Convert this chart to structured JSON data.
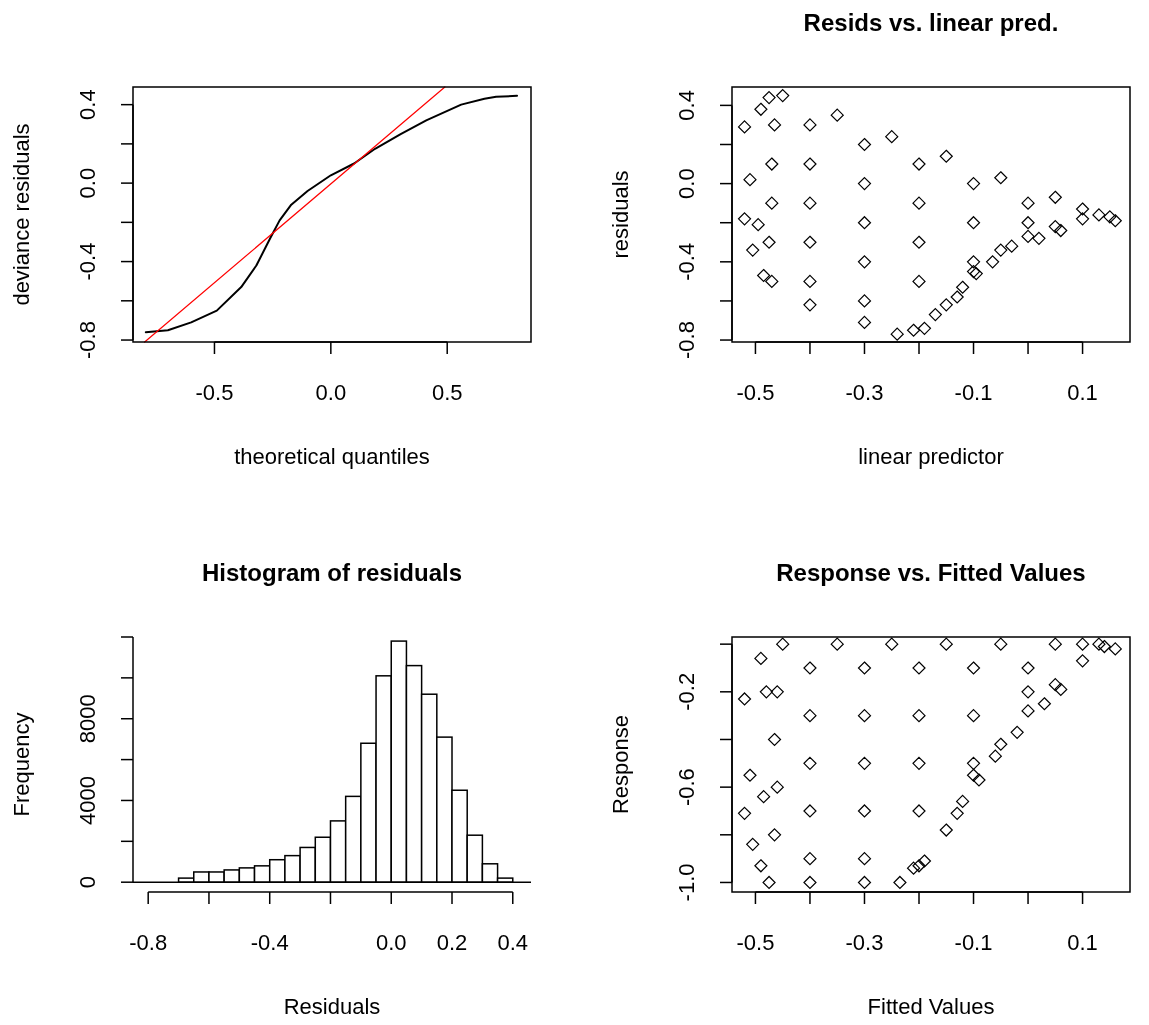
{
  "chart_data": [
    {
      "type": "line",
      "xlabel": "theoretical quantiles",
      "ylabel": "deviance residuals",
      "xlim": [
        -0.85,
        0.86
      ],
      "ylim": [
        -0.81,
        0.49
      ],
      "xticks": [
        -0.5,
        {
          "value": 0,
          "label": "0.0"
        },
        0.5
      ],
      "yticks": [
        -0.8,
        {
          "value": -0.6,
          "label": null
        },
        -0.4,
        {
          "value": -0.2,
          "label": null
        },
        {
          "value": 0,
          "label": "0.0"
        },
        {
          "value": 0.2,
          "label": null
        },
        0.4
      ],
      "series": [
        {
          "color": "#000000",
          "x": [
            -0.795,
            -0.7,
            -0.6,
            -0.49,
            -0.385,
            -0.32,
            -0.26,
            -0.22,
            -0.17,
            -0.1,
            0,
            0.1,
            0.19,
            0.3,
            0.41,
            0.56,
            0.66,
            0.71,
            0.8
          ],
          "values": [
            -0.76,
            -0.75,
            -0.71,
            -0.65,
            -0.53,
            -0.42,
            -0.28,
            -0.19,
            -0.11,
            -0.04,
            0.04,
            0.1,
            0.175,
            0.25,
            0.32,
            0.4,
            0.43,
            0.44,
            0.445
          ]
        },
        {
          "color": "#ff0000",
          "x": [
            -0.8,
            0.49
          ],
          "values": [
            -0.81,
            0.49
          ]
        }
      ]
    },
    {
      "type": "scatter",
      "title": "Resids vs. linear pred.",
      "xlabel": "linear predictor",
      "ylabel": "residuals",
      "xlim": [
        -0.543,
        0.187
      ],
      "ylim": [
        -0.81,
        0.494
      ],
      "marker": "diamond",
      "xticks": [
        -0.5,
        {
          "value": -0.4,
          "label": null
        },
        -0.3,
        {
          "value": -0.2,
          "label": null
        },
        -0.1,
        {
          "value": 0,
          "label": null
        },
        0.1
      ],
      "yticks": [
        -0.8,
        {
          "value": -0.6,
          "label": null
        },
        -0.4,
        {
          "value": -0.2,
          "label": null
        },
        {
          "value": 0,
          "label": "0.0"
        },
        {
          "value": 0.2,
          "label": null
        },
        0.4
      ],
      "series": [
        {
          "color": "#000000",
          "x": [
            -0.45,
            -0.35,
            -0.25,
            -0.15,
            -0.05,
            0.05,
            0.1,
            0.13,
            -0.465,
            -0.47,
            -0.47,
            -0.475,
            -0.47,
            -0.4,
            -0.3,
            -0.24,
            -0.17,
            -0.15,
            -0.12,
            -0.1,
            -0.05,
            0,
            0.05,
            0.1,
            -0.4,
            -0.4,
            -0.4,
            -0.4,
            -0.4,
            -0.3,
            -0.3,
            -0.3,
            -0.3,
            -0.3,
            -0.2,
            -0.2,
            -0.2,
            -0.2,
            -0.1,
            -0.1,
            -0.1,
            0,
            0,
            -0.52,
            -0.51,
            -0.52,
            -0.505,
            -0.49,
            -0.475,
            -0.495,
            -0.485,
            -0.21,
            -0.19,
            -0.13,
            -0.095,
            -0.065,
            -0.03,
            0.02,
            0.06,
            0.16,
            0.15
          ],
          "values": [
            0.45,
            0.35,
            0.24,
            0.14,
            0.03,
            -0.07,
            -0.13,
            -0.16,
            0.3,
            0.1,
            -0.1,
            -0.3,
            -0.5,
            -0.62,
            -0.71,
            -0.77,
            -0.67,
            -0.62,
            -0.53,
            -0.45,
            -0.34,
            -0.27,
            -0.22,
            -0.18,
            0.3,
            0.1,
            -0.1,
            -0.3,
            -0.5,
            0.2,
            0,
            -0.2,
            -0.4,
            -0.6,
            0.1,
            -0.1,
            -0.3,
            -0.5,
            0,
            -0.2,
            -0.4,
            -0.1,
            -0.2,
            0.29,
            0.02,
            -0.18,
            -0.34,
            0.38,
            0.44,
            -0.21,
            -0.47,
            -0.75,
            -0.74,
            -0.58,
            -0.46,
            -0.4,
            -0.32,
            -0.28,
            -0.24,
            -0.19,
            -0.17
          ]
        }
      ]
    },
    {
      "type": "histogram",
      "title": "Histogram of residuals",
      "xlabel": "Residuals",
      "ylabel": "Frequency",
      "xlim": [
        -0.85,
        0.46
      ],
      "ylim": [
        -480,
        12000
      ],
      "xticks": [
        -0.8,
        {
          "value": -0.6,
          "label": null
        },
        -0.4,
        {
          "value": -0.2,
          "label": null
        },
        {
          "value": 0,
          "label": "0.0"
        },
        0.2,
        0.4
      ],
      "yticks": [
        0,
        {
          "value": 2000,
          "label": null
        },
        4000,
        {
          "value": 6000,
          "label": null
        },
        8000,
        {
          "value": 10000,
          "label": null
        },
        {
          "value": 12000,
          "label": null
        }
      ],
      "bins": [
        -0.8,
        -0.75,
        -0.7,
        -0.65,
        -0.6,
        -0.55,
        -0.5,
        -0.45,
        -0.4,
        -0.35,
        -0.3,
        -0.25,
        -0.2,
        -0.15,
        -0.1,
        -0.05,
        0,
        0.05,
        0.1,
        0.15,
        0.2,
        0.25,
        0.3,
        0.35,
        0.4
      ],
      "values": [
        0,
        0,
        200,
        500,
        500,
        600,
        700,
        800,
        1100,
        1300,
        1700,
        2200,
        3000,
        4200,
        6800,
        10100,
        11800,
        10600,
        9200,
        7100,
        4500,
        2300,
        900,
        200
      ],
      "color": "#ffffff",
      "ref_lines": [
        {
          "axis": "y",
          "value": 0
        }
      ]
    },
    {
      "type": "scatter",
      "title": "Response vs. Fitted Values",
      "xlabel": "Fitted Values",
      "ylabel": "Response",
      "xlim": [
        -0.543,
        0.187
      ],
      "ylim": [
        -1.04,
        0.03
      ],
      "marker": "diamond",
      "xticks": [
        -0.5,
        {
          "value": -0.4,
          "label": null
        },
        -0.3,
        {
          "value": -0.2,
          "label": null
        },
        -0.1,
        {
          "value": 0,
          "label": null
        },
        0.1
      ],
      "yticks": [
        {
          "value": -1,
          "label": "-1.0"
        },
        {
          "value": -0.8,
          "label": null
        },
        -0.6,
        {
          "value": -0.4,
          "label": null
        },
        -0.2,
        {
          "value": 0,
          "label": null
        }
      ],
      "series": [
        {
          "color": "#000000",
          "x": [
            -0.45,
            -0.35,
            -0.25,
            -0.15,
            -0.05,
            0.05,
            0.1,
            0.13,
            -0.46,
            -0.465,
            -0.46,
            -0.465,
            -0.4,
            -0.3,
            -0.235,
            -0.2,
            -0.15,
            -0.12,
            -0.1,
            -0.05,
            0,
            0.05,
            0.1,
            -0.4,
            -0.4,
            -0.4,
            -0.4,
            -0.4,
            -0.3,
            -0.3,
            -0.3,
            -0.3,
            -0.3,
            -0.2,
            -0.2,
            -0.2,
            -0.2,
            -0.1,
            -0.1,
            -0.1,
            0,
            0,
            -0.52,
            -0.51,
            -0.52,
            -0.505,
            -0.49,
            -0.48,
            -0.485,
            -0.49,
            -0.475,
            -0.21,
            -0.19,
            -0.13,
            -0.09,
            -0.06,
            -0.02,
            0.03,
            0.06,
            0.16,
            0.14
          ],
          "values": [
            0,
            0,
            0,
            0,
            0,
            0,
            0,
            0,
            -0.2,
            -0.4,
            -0.6,
            -0.8,
            -1,
            -1,
            -1,
            -0.93,
            -0.78,
            -0.66,
            -0.55,
            -0.42,
            -0.28,
            -0.17,
            -0.07,
            -0.1,
            -0.3,
            -0.5,
            -0.7,
            -0.9,
            -0.1,
            -0.3,
            -0.5,
            -0.7,
            -0.9,
            -0.1,
            -0.3,
            -0.5,
            -0.7,
            -0.1,
            -0.3,
            -0.5,
            -0.1,
            -0.2,
            -0.23,
            -0.55,
            -0.71,
            -0.84,
            -0.06,
            -0.2,
            -0.64,
            -0.93,
            -1,
            -0.94,
            -0.91,
            -0.71,
            -0.57,
            -0.47,
            -0.37,
            -0.25,
            -0.19,
            -0.02,
            -0.01
          ]
        }
      ]
    }
  ]
}
